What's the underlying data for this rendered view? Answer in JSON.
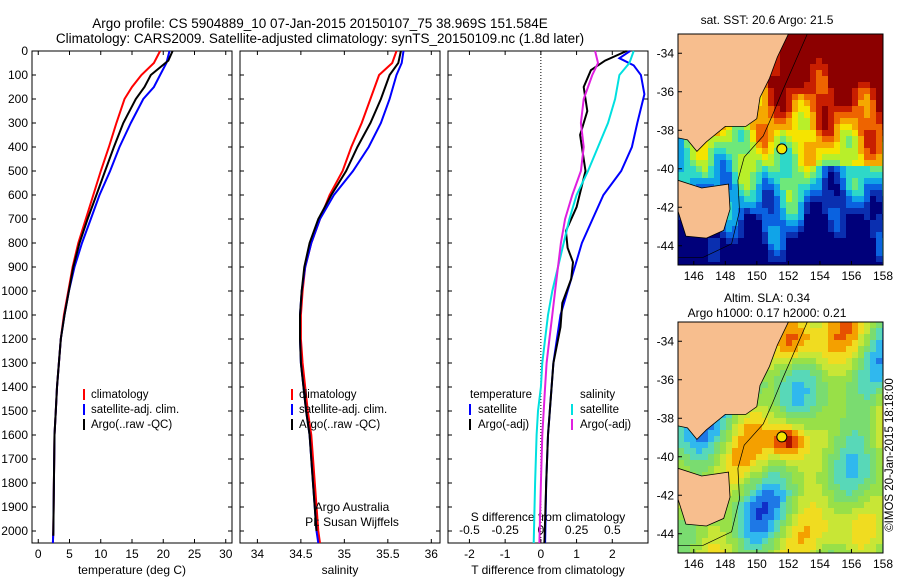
{
  "header": {
    "line1": "Argo profile: CS 5904889_10 07-Jan-2015 20150107_75 38.969S 151.584E",
    "line2": "Climatology: CARS2009. Satellite-adjusted climatology: synTS_20150109.nc (1.8d later)"
  },
  "colors": {
    "climatology": "#ff0000",
    "satellite": "#0000ff",
    "argo": "#000000",
    "t_satellite": "#0000ff",
    "t_argo": "#000000",
    "s_satellite": "#00e0e0",
    "s_argo": "#e020e0",
    "land": "#f7be8e"
  },
  "credit": "©IMOS 20-Jan-2015 18:18:00",
  "chart_data": [
    {
      "type": "line",
      "id": "temperature",
      "xlabel": "temperature (deg C)",
      "ylabel": "",
      "xlim": [
        -1,
        31
      ],
      "ylim": [
        2050,
        0
      ],
      "xticks": [
        0,
        5,
        10,
        15,
        20,
        25,
        30
      ],
      "yticks": [
        0,
        100,
        200,
        300,
        400,
        500,
        600,
        700,
        800,
        900,
        1000,
        1100,
        1200,
        1300,
        1400,
        1500,
        1600,
        1700,
        1800,
        1900,
        2000
      ],
      "legend": [
        "climatology",
        "satellite-adj. clim.",
        "Argo(..raw -QC)"
      ],
      "legend_position": "bottom-center",
      "series": [
        {
          "name": "climatology",
          "color": "#ff0000",
          "x": [
            19.5,
            18.5,
            16.5,
            15.0,
            13.8,
            12.5,
            11.3,
            10.0,
            8.8,
            7.6,
            6.4,
            5.5,
            4.8,
            4.1,
            3.6,
            3.3,
            3.0,
            2.8,
            2.6,
            2.5,
            2.4,
            2.35
          ],
          "y": [
            0,
            50,
            100,
            150,
            200,
            300,
            400,
            500,
            600,
            700,
            800,
            900,
            1000,
            1100,
            1200,
            1300,
            1400,
            1500,
            1600,
            1800,
            2000,
            2050
          ]
        },
        {
          "name": "satellite-adj. clim.",
          "color": "#0000ff",
          "x": [
            21.0,
            20.5,
            19.5,
            18.5,
            16.8,
            14.8,
            13.0,
            11.5,
            9.8,
            8.4,
            7.0,
            5.8,
            4.9,
            4.2,
            3.6,
            3.3,
            3.0,
            2.8,
            2.6,
            2.5,
            2.4,
            2.35
          ],
          "y": [
            0,
            50,
            100,
            150,
            200,
            300,
            400,
            500,
            600,
            700,
            800,
            900,
            1000,
            1100,
            1200,
            1300,
            1400,
            1500,
            1600,
            1800,
            2000,
            2050
          ]
        },
        {
          "name": "Argo(..raw -QC)",
          "color": "#000000",
          "x": [
            21.5,
            20.8,
            18.0,
            17.0,
            15.6,
            13.6,
            12.1,
            10.7,
            9.3,
            7.9,
            6.6,
            5.6,
            4.9,
            4.2,
            3.6,
            3.3,
            3.0,
            2.8,
            2.6,
            2.5,
            2.4
          ],
          "y": [
            0,
            40,
            100,
            150,
            200,
            300,
            400,
            500,
            600,
            700,
            800,
            900,
            1000,
            1100,
            1200,
            1300,
            1400,
            1500,
            1600,
            1800,
            2020
          ]
        }
      ]
    },
    {
      "type": "line",
      "id": "salinity",
      "xlabel": "salinity",
      "xlim": [
        33.8,
        36.1
      ],
      "ylim": [
        2050,
        0
      ],
      "xticks": [
        34,
        34.5,
        35,
        35.5,
        36
      ],
      "legend": [
        "climatology",
        "satellite-adj. clim.",
        "Argo(..raw -QC)"
      ],
      "annotation": [
        "Argo Australia",
        "PI: Susan Wijffels"
      ],
      "series": [
        {
          "name": "climatology",
          "color": "#ff0000",
          "x": [
            35.6,
            35.55,
            35.4,
            35.3,
            35.2,
            35.08,
            34.98,
            34.83,
            34.72,
            34.62,
            34.55,
            34.52,
            34.5,
            34.5,
            34.52,
            34.55,
            34.58,
            34.62,
            34.66,
            34.7,
            34.72
          ],
          "y": [
            0,
            50,
            100,
            200,
            300,
            400,
            500,
            600,
            700,
            800,
            900,
            1000,
            1100,
            1200,
            1300,
            1400,
            1500,
            1600,
            1800,
            2000,
            2050
          ]
        },
        {
          "name": "satellite-adj. clim.",
          "color": "#0000ff",
          "x": [
            35.68,
            35.66,
            35.6,
            35.52,
            35.42,
            35.28,
            35.1,
            34.88,
            34.72,
            34.62,
            34.55,
            34.51,
            34.49,
            34.49,
            34.5,
            34.53,
            34.56,
            34.6,
            34.64,
            34.68,
            34.7
          ],
          "y": [
            0,
            50,
            100,
            200,
            300,
            400,
            500,
            600,
            700,
            800,
            900,
            1000,
            1100,
            1200,
            1300,
            1400,
            1500,
            1600,
            1800,
            2000,
            2050
          ]
        },
        {
          "name": "Argo(..raw -QC)",
          "color": "#000000",
          "x": [
            35.65,
            35.62,
            35.52,
            35.42,
            35.3,
            35.15,
            35.02,
            34.85,
            34.7,
            34.6,
            34.54,
            34.51,
            34.49,
            34.49,
            34.5,
            34.53,
            34.56,
            34.6,
            34.64,
            34.68
          ],
          "y": [
            0,
            50,
            100,
            200,
            300,
            400,
            500,
            600,
            700,
            800,
            900,
            1000,
            1100,
            1200,
            1300,
            1400,
            1500,
            1600,
            1800,
            2000
          ]
        }
      ]
    },
    {
      "type": "line",
      "id": "difference",
      "xlabel": "T difference from climatology",
      "xlabel_top": "S difference from climatology",
      "xlim": [
        -2.6,
        3.0
      ],
      "ylim": [
        2050,
        0
      ],
      "xticks": [
        -2,
        -1,
        0,
        1,
        2
      ],
      "xticks_s": [
        "-0.5",
        "-0.25",
        "0",
        "0.25",
        "0.5"
      ],
      "legend_t": {
        "title": "temperature",
        "items": [
          "satellite",
          "Argo(-adj)"
        ]
      },
      "legend_s": {
        "title": "salinity",
        "items": [
          "satellite",
          "Argo(-adj)"
        ]
      },
      "series": [
        {
          "name": "satellite",
          "group": "temperature",
          "color": "#0000ff",
          "x": [
            2.5,
            2.2,
            2.6,
            2.8,
            2.9,
            2.7,
            2.55,
            2.25,
            1.75,
            1.45,
            1.15,
            0.95,
            0.75,
            0.55,
            0.45,
            0.35,
            0.3,
            0.25,
            0.2,
            0.15,
            0.12
          ],
          "y": [
            0,
            30,
            60,
            100,
            180,
            300,
            400,
            500,
            600,
            700,
            800,
            900,
            1000,
            1100,
            1200,
            1300,
            1400,
            1500,
            1600,
            1800,
            2050
          ]
        },
        {
          "name": "Argo(-adj)",
          "group": "temperature",
          "color": "#000000",
          "x": [
            2.4,
            1.8,
            1.4,
            1.2,
            1.3,
            1.1,
            1.25,
            1.0,
            0.7,
            0.75,
            0.9,
            0.85,
            0.6,
            0.55,
            0.35,
            0.3,
            0.25,
            0.2,
            0.15,
            0.1
          ],
          "y": [
            0,
            40,
            80,
            150,
            250,
            350,
            500,
            650,
            750,
            820,
            880,
            950,
            1050,
            1150,
            1300,
            1400,
            1500,
            1600,
            1800,
            2050
          ]
        },
        {
          "name": "satellite",
          "group": "salinity",
          "color": "#00e0e0",
          "x": [
            0.65,
            0.62,
            0.55,
            0.52,
            0.47,
            0.4,
            0.33,
            0.25,
            0.2,
            0.16,
            0.12,
            0.08,
            0.05,
            0.03,
            0.01,
            0.0,
            -0.02,
            -0.03,
            -0.04,
            -0.05
          ],
          "y": [
            0,
            50,
            100,
            200,
            300,
            400,
            500,
            600,
            700,
            800,
            900,
            1000,
            1100,
            1200,
            1300,
            1400,
            1500,
            1600,
            1800,
            2050
          ]
        },
        {
          "name": "Argo(-adj)",
          "group": "salinity",
          "color": "#e020e0",
          "x": [
            0.38,
            0.4,
            0.36,
            0.3,
            0.28,
            0.3,
            0.28,
            0.22,
            0.17,
            0.14,
            0.12,
            0.1,
            0.08,
            0.06,
            0.04,
            0.03,
            0.02,
            0.01,
            0.0,
            -0.01
          ],
          "y": [
            0,
            50,
            100,
            200,
            300,
            400,
            500,
            600,
            700,
            800,
            900,
            1000,
            1100,
            1200,
            1300,
            1400,
            1500,
            1600,
            1800,
            2050
          ]
        }
      ]
    },
    {
      "type": "heatmap",
      "id": "sst_map",
      "title": "sat. SST: 20.6  Argo: 21.5",
      "xlim": [
        145,
        158
      ],
      "ylim": [
        -45,
        -33
      ],
      "xticks": [
        146,
        148,
        150,
        152,
        154,
        156,
        158
      ],
      "yticks": [
        -34,
        -36,
        -38,
        -40,
        -42,
        -44
      ],
      "marker": {
        "lon": 151.584,
        "lat": -38.969
      }
    },
    {
      "type": "heatmap",
      "id": "sla_map",
      "title": "Altim. SLA: 0.34",
      "subtitle": "Argo h1000: 0.17 h2000: 0.21",
      "xlim": [
        145,
        158
      ],
      "ylim": [
        -45,
        -33
      ],
      "xticks": [
        146,
        148,
        150,
        152,
        154,
        156,
        158
      ],
      "yticks": [
        -34,
        -36,
        -38,
        -40,
        -42,
        -44
      ],
      "marker": {
        "lon": 151.584,
        "lat": -38.969
      }
    }
  ]
}
